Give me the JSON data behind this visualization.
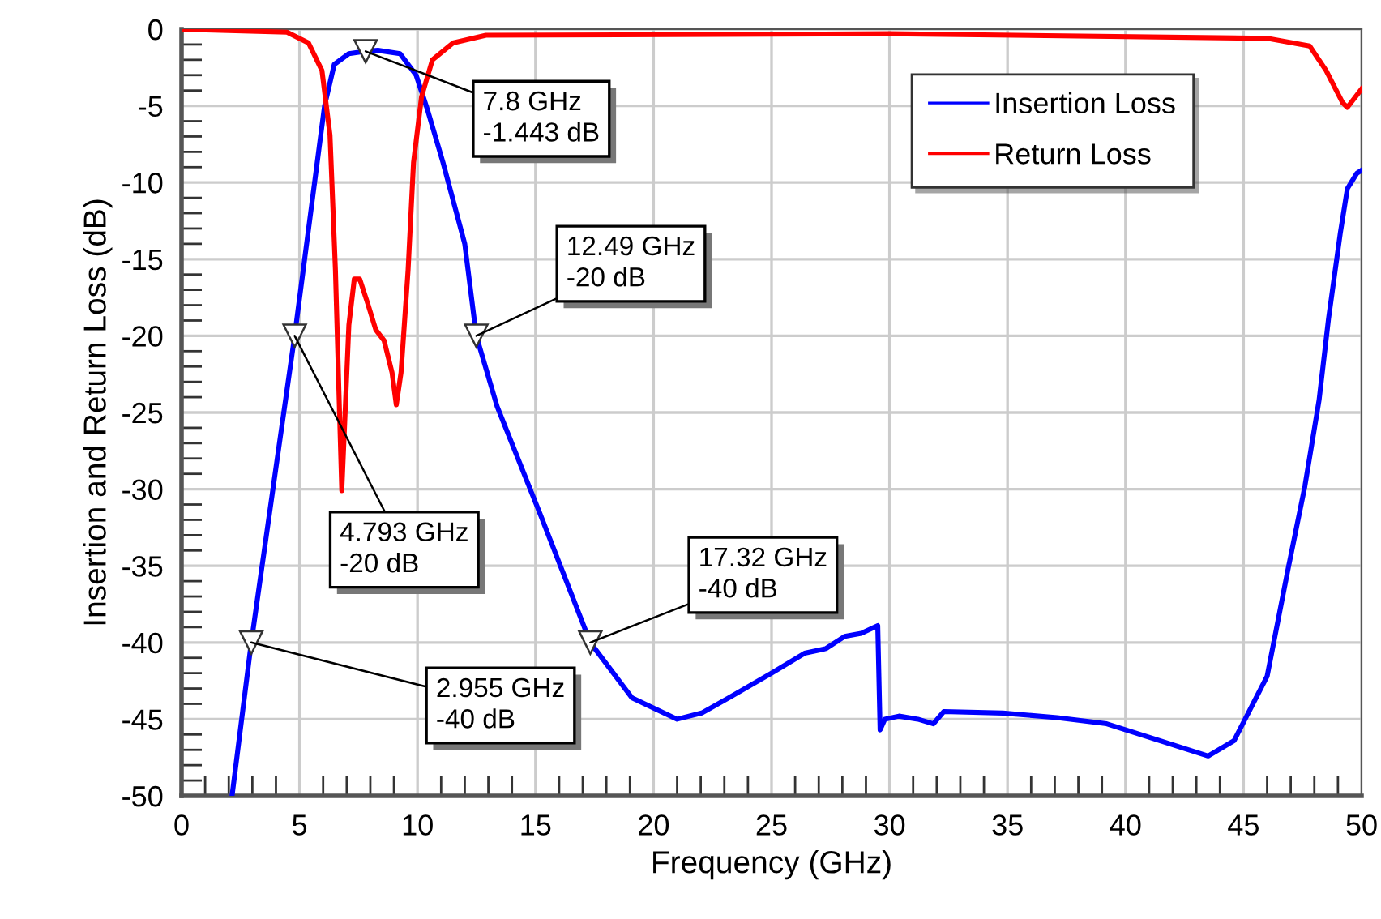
{
  "chart_data": {
    "type": "line",
    "xlabel": "Frequency (GHz)",
    "ylabel": "Insertion and Return Loss (dB)",
    "xlim": [
      0,
      50
    ],
    "ylim": [
      -50,
      0
    ],
    "xticks": [
      0,
      5,
      10,
      15,
      20,
      25,
      30,
      35,
      40,
      45,
      50
    ],
    "yticks": [
      0,
      -5,
      -10,
      -15,
      -20,
      -25,
      -30,
      -35,
      -40,
      -45,
      -50
    ],
    "grid": true,
    "legend": "top right",
    "series": [
      {
        "name": "Insertion Loss",
        "color": "#0000ff",
        "x": [
          2.14,
          2.955,
          3.89,
          4.793,
          6.06,
          6.47,
          7.09,
          7.8,
          8.32,
          9.26,
          9.94,
          10.4,
          11.08,
          12.0,
          12.49,
          13.37,
          15.19,
          17.32,
          19.08,
          21.0,
          22.04,
          23.2,
          25.0,
          26.4,
          27.3,
          28.1,
          28.8,
          29.5,
          29.6,
          29.8,
          30.4,
          31.2,
          31.86,
          32.3,
          34.8,
          37.1,
          39.2,
          41.45,
          43.5,
          44.6,
          46.0,
          46.9,
          47.6,
          48.2,
          48.6,
          49.1,
          49.4,
          49.8,
          50.0
        ],
        "values": [
          -50,
          -40,
          -29.8,
          -20,
          -5,
          -2.3,
          -1.6,
          -1.443,
          -1.38,
          -1.6,
          -3.0,
          -5.15,
          -8.7,
          -14,
          -20,
          -24.6,
          -31.6,
          -40,
          -43.6,
          -45.0,
          -44.6,
          -43.6,
          -42.0,
          -40.7,
          -40.4,
          -39.6,
          -39.4,
          -38.9,
          -45.7,
          -45.0,
          -44.8,
          -45.0,
          -45.3,
          -44.5,
          -44.6,
          -44.9,
          -45.3,
          -46.4,
          -47.4,
          -46.4,
          -42.2,
          -35.1,
          -29.8,
          -24.2,
          -18.9,
          -13.3,
          -10.4,
          -9.4,
          -9.2
        ]
      },
      {
        "name": "Return Loss",
        "color": "#ff0000",
        "x": [
          0,
          4.47,
          5.38,
          5.95,
          6.29,
          6.52,
          6.79,
          7.09,
          7.32,
          7.55,
          7.89,
          8.23,
          8.58,
          8.92,
          9.1,
          9.3,
          9.6,
          9.83,
          10.17,
          10.63,
          11.5,
          12.9,
          30.0,
          46.0,
          47.8,
          48.5,
          49.2,
          49.4,
          49.8,
          50.0
        ],
        "values": [
          0,
          -0.2,
          -0.9,
          -2.7,
          -6.9,
          -15.7,
          -30.1,
          -19.3,
          -16.3,
          -16.3,
          -17.9,
          -19.6,
          -20.3,
          -22.4,
          -24.5,
          -22.4,
          -15.7,
          -8.7,
          -4.4,
          -2.0,
          -0.9,
          -0.4,
          -0.3,
          -0.6,
          -1.1,
          -2.7,
          -4.8,
          -5.1,
          -4.3,
          -3.9
        ]
      }
    ],
    "annotations": [
      {
        "text": "7.8 GHz\n-1.443 dB",
        "x": 7.8,
        "y": -1.443
      },
      {
        "text": "12.49 GHz\n-20 dB",
        "x": 12.49,
        "y": -20
      },
      {
        "text": "4.793 GHz\n-20 dB",
        "x": 4.793,
        "y": -20
      },
      {
        "text": "17.32 GHz\n-40 dB",
        "x": 17.32,
        "y": -40
      },
      {
        "text": "2.955 GHz\n-40 dB",
        "x": 2.955,
        "y": -40
      }
    ]
  }
}
